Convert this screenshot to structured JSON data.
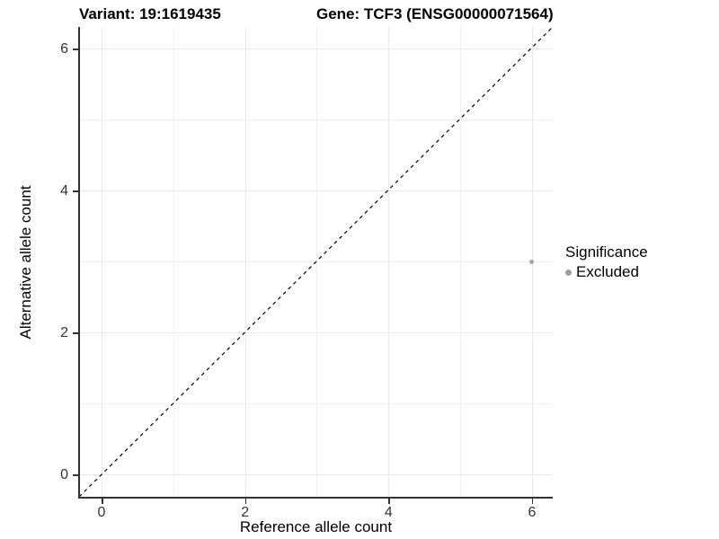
{
  "titles": {
    "variant": "Variant: 19:1619435",
    "gene": "Gene: TCF3 (ENSG00000071564)"
  },
  "axes": {
    "x": {
      "label": "Reference allele count",
      "major_ticks": [
        0,
        2,
        4,
        6
      ],
      "minor_ticks": [
        1,
        3,
        5
      ],
      "tick_labels": [
        "0",
        "2",
        "4",
        "6"
      ]
    },
    "y": {
      "label": "Alternative allele count",
      "major_ticks": [
        0,
        2,
        4,
        6
      ],
      "minor_ticks": [
        1,
        3,
        5
      ],
      "tick_labels": [
        "0",
        "2",
        "4",
        "6"
      ]
    }
  },
  "legend": {
    "title": "Significance",
    "items": [
      {
        "label": "Excluded",
        "color": "#9e9e9e"
      }
    ]
  },
  "colors": {
    "background": "#ffffff",
    "axis_line": "#333333",
    "grid_major": "#e9e9e9",
    "grid_minor": "#f1f1f1",
    "point": "#a6a6a6",
    "identity_line": "#000000",
    "title_text": "#000000",
    "tick_text": "#333333"
  },
  "chart_data": {
    "type": "scatter",
    "title": "Variant: 19:1619435        Gene: TCF3 (ENSG00000071564)",
    "xlabel": "Reference allele count",
    "ylabel": "Alternative allele count",
    "xlim": [
      -0.31,
      6.3
    ],
    "ylim": [
      -0.31,
      6.3
    ],
    "grid": true,
    "legend_position": "right",
    "series": [
      {
        "name": "Excluded",
        "color": "#a6a6a6",
        "points": [
          {
            "x": 6,
            "y": 3
          }
        ]
      }
    ],
    "reference_line": {
      "type": "identity",
      "equation": "y = x",
      "style": "dashed",
      "color": "#000000"
    }
  }
}
